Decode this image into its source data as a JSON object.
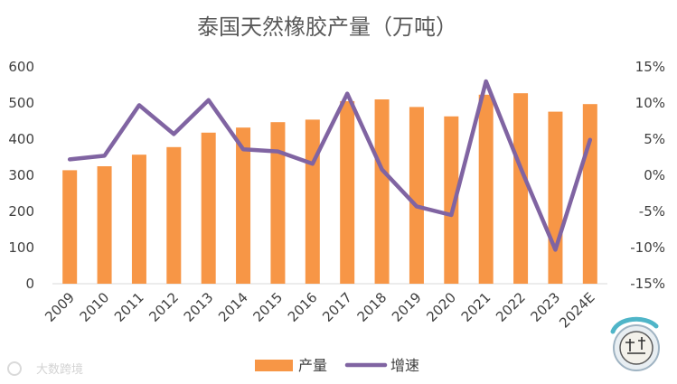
{
  "chart_data": {
    "type": "bar+line",
    "title": "泰国天然橡胶产量（万吨）",
    "categories": [
      "2009",
      "2010",
      "2011",
      "2012",
      "2013",
      "2014",
      "2015",
      "2016",
      "2017",
      "2018",
      "2019",
      "2020",
      "2021",
      "2022",
      "2023",
      "2024E"
    ],
    "series": [
      {
        "name": "产量",
        "type": "bar",
        "axis": "left",
        "color": "#F79646",
        "values": [
          314,
          325,
          357,
          378,
          418,
          432,
          447,
          454,
          505,
          510,
          489,
          463,
          523,
          527,
          476,
          497
        ]
      },
      {
        "name": "增速",
        "type": "line",
        "axis": "right",
        "color": "#8064A2",
        "values": [
          2.2,
          2.7,
          9.7,
          5.7,
          10.4,
          3.6,
          3.3,
          1.6,
          11.3,
          0.8,
          -4.3,
          -5.5,
          13.0,
          1.0,
          -10.3,
          4.9
        ]
      }
    ],
    "y_left": {
      "min": 0,
      "max": 600,
      "ticks": [
        "0",
        "100",
        "200",
        "300",
        "400",
        "500",
        "600"
      ]
    },
    "y_right": {
      "min": -15,
      "max": 15,
      "ticks": [
        "-15%",
        "-10%",
        "-5%",
        "0%",
        "5%",
        "10%",
        "15%"
      ]
    },
    "grid": false,
    "legend": "bottom-center",
    "watermark": {
      "text": "大数跨境",
      "logo_icon": "company-seal-icon"
    }
  }
}
